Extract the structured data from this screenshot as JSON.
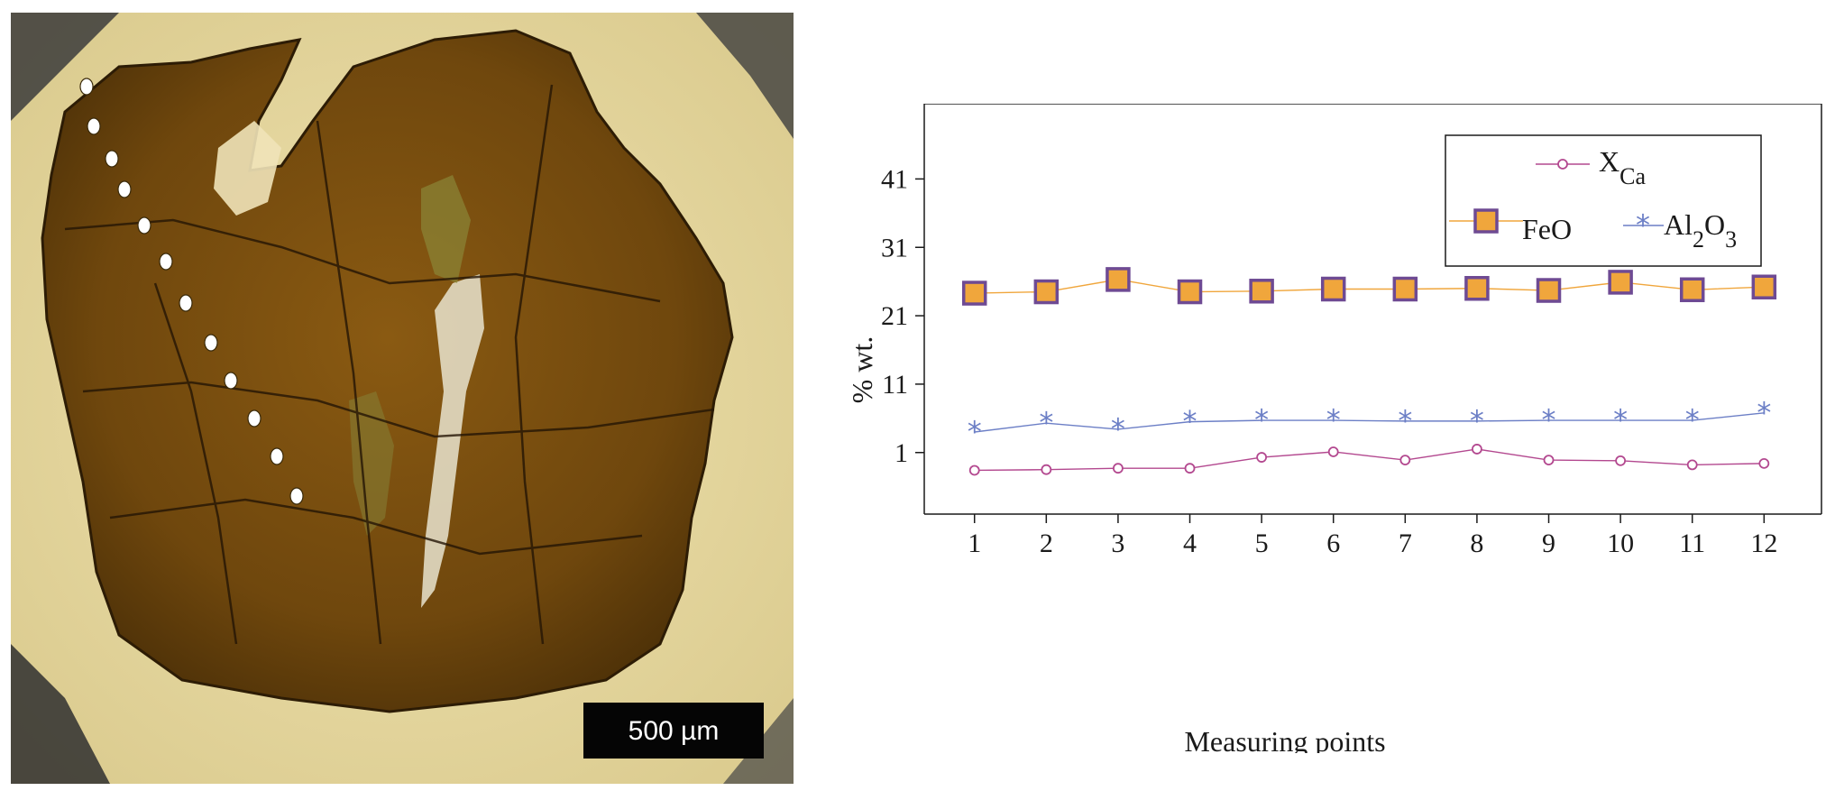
{
  "micrograph": {
    "scale_bar_label": "500 µm",
    "measuring_points_marked": 12
  },
  "chart_data": {
    "type": "line",
    "xlabel": "Measuring points",
    "ylabel": "% wt.",
    "x": [
      1,
      2,
      3,
      4,
      5,
      6,
      7,
      8,
      9,
      10,
      11,
      12
    ],
    "x_range": [
      0.3,
      12.8
    ],
    "y_range": [
      -8,
      52
    ],
    "y_ticks": [
      1,
      11,
      21,
      31,
      41
    ],
    "grid": false,
    "legend_placement": "top-right",
    "series": [
      {
        "name": "X",
        "sub": "Ca",
        "marker": "circle",
        "color": "#b3488f",
        "values": [
          -1.6,
          -1.5,
          -1.3,
          -1.3,
          0.3,
          1.1,
          -0.1,
          1.5,
          -0.1,
          -0.2,
          -0.8,
          -0.6
        ]
      },
      {
        "name": "FeO",
        "marker": "square",
        "color": "#f0a63c",
        "values": [
          24.3,
          24.5,
          26.3,
          24.5,
          24.6,
          24.9,
          24.9,
          25.0,
          24.7,
          25.9,
          24.8,
          25.2
        ]
      },
      {
        "name": "Al",
        "sub": "2",
        "name2": "O",
        "sub2": "3",
        "marker": "asterisk",
        "color": "#6c7fc6",
        "values": [
          4.0,
          5.3,
          4.4,
          5.5,
          5.7,
          5.7,
          5.6,
          5.6,
          5.7,
          5.7,
          5.7,
          6.8
        ]
      }
    ]
  }
}
